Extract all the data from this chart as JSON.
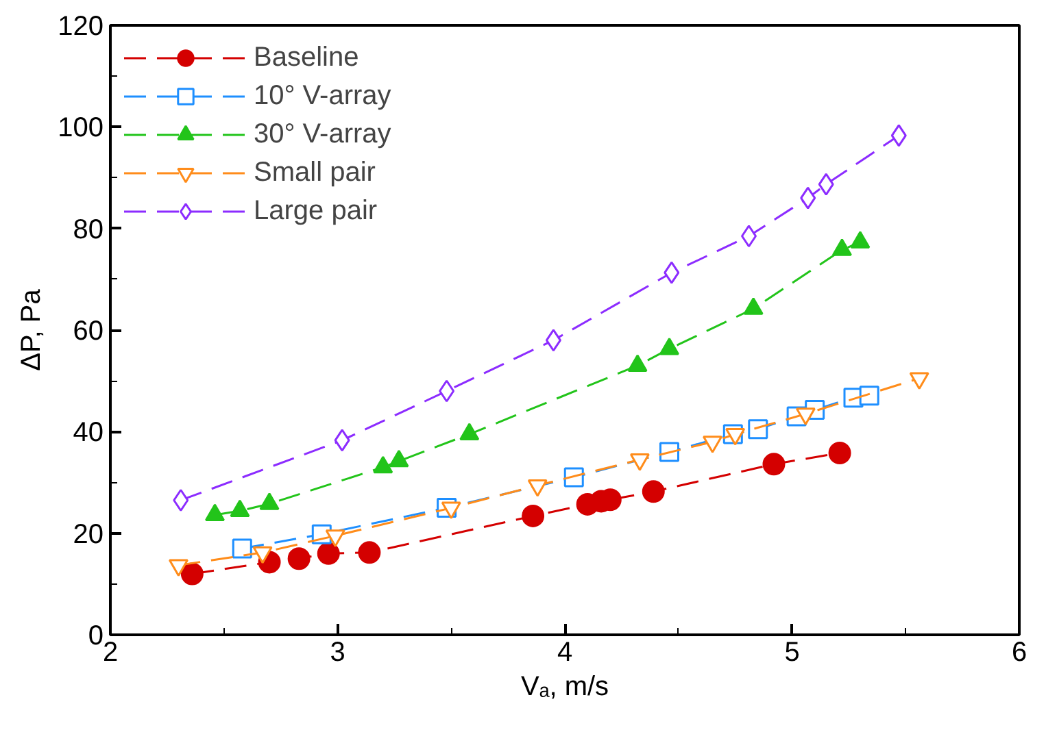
{
  "chart_data": {
    "type": "line",
    "xlabel": "Vₐ, m/s",
    "ylabel": "ΔP, Pa",
    "xlim": [
      2,
      6
    ],
    "ylim": [
      0,
      120
    ],
    "xticks": [
      2,
      3,
      4,
      5,
      6
    ],
    "yticks": [
      0,
      20,
      40,
      60,
      80,
      100,
      120
    ],
    "grid": false,
    "legend": "top left",
    "line_style": "dashed",
    "series": [
      {
        "name": "Baseline",
        "color": "#d40000",
        "marker": "circle",
        "x": [
          2.36,
          2.7,
          2.83,
          2.96,
          3.14,
          3.86,
          4.1,
          4.16,
          4.2,
          4.39,
          4.92,
          5.21
        ],
        "values": [
          12,
          14.3,
          15,
          16,
          16.2,
          23.4,
          25.7,
          26.3,
          26.6,
          28.2,
          33.6,
          35.8
        ]
      },
      {
        "name": "10° V-array",
        "color": "#1e8fff",
        "marker": "square",
        "x": [
          2.58,
          2.93,
          3.48,
          4.04,
          4.46,
          4.74,
          4.85,
          5.02,
          5.1,
          5.27,
          5.34
        ],
        "values": [
          17,
          19.8,
          25,
          31,
          36,
          39.5,
          40.5,
          43,
          44.3,
          46.7,
          47.1
        ]
      },
      {
        "name": "30° V-array",
        "color": "#22c41a",
        "marker": "triangle",
        "x": [
          2.46,
          2.57,
          2.7,
          3.2,
          3.27,
          3.58,
          4.32,
          4.46,
          4.83,
          5.22,
          5.3
        ],
        "values": [
          23.6,
          24.4,
          25.8,
          33,
          34.2,
          39.5,
          53,
          56.3,
          64.2,
          75.8,
          77.3
        ]
      },
      {
        "name": "Small pair",
        "color": "#ff8c1a",
        "marker": "triangle",
        "x": [
          2.3,
          2.67,
          2.99,
          3.5,
          3.88,
          4.33,
          4.65,
          4.75,
          5.06,
          5.56
        ],
        "values": [
          13.7,
          16.2,
          19.5,
          25,
          29.4,
          34.5,
          38,
          39.5,
          43.5,
          50.5
        ]
      },
      {
        "name": "Large pair",
        "color": "#8c2cff",
        "marker": "diamond",
        "x": [
          2.31,
          3.02,
          3.48,
          3.95,
          4.47,
          4.81,
          5.07,
          5.15,
          5.47
        ],
        "values": [
          26.5,
          38.3,
          48,
          58,
          71.3,
          78.5,
          86,
          88.7,
          98.3
        ]
      }
    ]
  }
}
